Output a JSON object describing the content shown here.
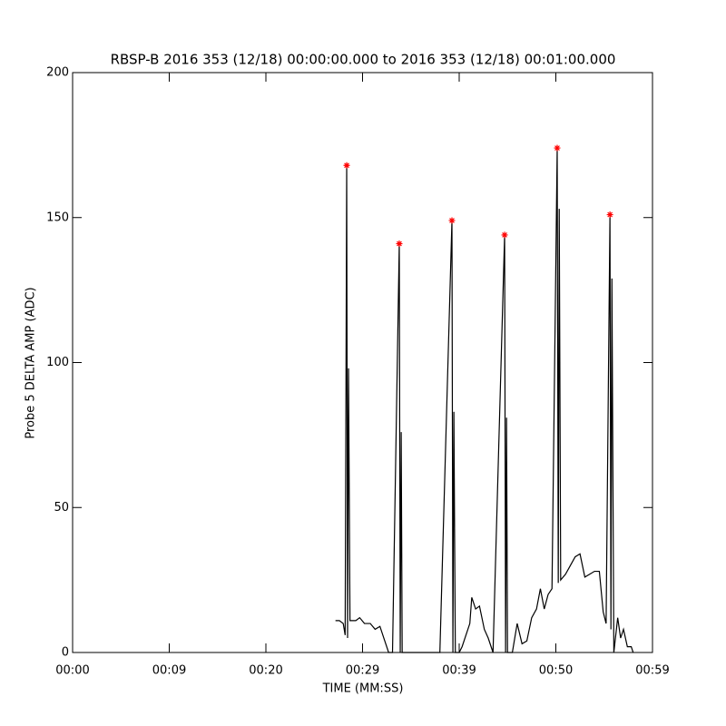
{
  "chart_data": {
    "type": "line",
    "title": "RBSP-B 2016 353 (12/18) 00:00:00.000 to 2016 353 (12/18) 00:01:00.000",
    "xlabel": "TIME (MM:SS)",
    "ylabel": "Probe 5 DELTA AMP (ADC)",
    "xlim": [
      0,
      60
    ],
    "xticks": [
      {
        "value": 0,
        "label": "00:00"
      },
      {
        "value": 10,
        "label": "00:09"
      },
      {
        "value": 20,
        "label": "00:20"
      },
      {
        "value": 30,
        "label": "00:29"
      },
      {
        "value": 40,
        "label": "00:39"
      },
      {
        "value": 50,
        "label": "00:50"
      },
      {
        "value": 60,
        "label": "00:59"
      }
    ],
    "ylim": [
      0,
      200
    ],
    "yticks": [
      0,
      50,
      100,
      150,
      200
    ],
    "series": [
      {
        "color": "#000000",
        "x": [
          27.2,
          27.6,
          28.0,
          28.2,
          28.36,
          28.45,
          28.55,
          28.7,
          29.3,
          29.7,
          30.2,
          30.8,
          31.3,
          31.8,
          32.2,
          32.7,
          33.1,
          33.8,
          33.9,
          34.0,
          34.1,
          35.0,
          38.0,
          39.25,
          39.35,
          39.45,
          39.6,
          40.0,
          40.3,
          41.1,
          41.3,
          41.7,
          42.1,
          42.6,
          43.0,
          43.5,
          44.7,
          44.8,
          44.9,
          45.0,
          45.5,
          46.0,
          46.5,
          47.0,
          47.5,
          48.0,
          48.4,
          48.8,
          49.2,
          49.6,
          50.14,
          50.25,
          50.35,
          50.5,
          51.0,
          51.5,
          52.0,
          52.5,
          53.0,
          53.5,
          54.0,
          54.5,
          54.9,
          55.2,
          55.6,
          55.7,
          55.8,
          56.0,
          56.4,
          56.7,
          57.0,
          57.4,
          57.8,
          58.0
        ],
        "values": [
          11,
          11,
          10,
          6,
          168,
          5,
          98,
          11,
          11,
          12,
          10,
          10,
          8,
          9,
          5,
          0,
          0,
          141,
          0,
          76,
          0,
          0,
          0,
          149,
          0,
          83,
          0,
          0,
          2,
          10,
          19,
          15,
          16,
          8,
          5,
          0,
          144,
          0,
          81,
          0,
          0,
          10,
          3,
          4,
          12,
          15,
          22,
          15,
          20,
          22,
          174,
          24,
          153,
          25,
          27,
          30,
          33,
          34,
          26,
          27,
          28,
          28,
          14,
          10,
          151,
          8,
          129,
          0,
          12,
          5,
          8,
          2,
          2,
          0
        ]
      },
      {
        "color": "#ff0000",
        "marker": "*",
        "x": [
          28.36,
          33.8,
          39.25,
          44.7,
          50.14,
          55.6
        ],
        "values": [
          168,
          141,
          149,
          144,
          174,
          151
        ]
      }
    ]
  }
}
